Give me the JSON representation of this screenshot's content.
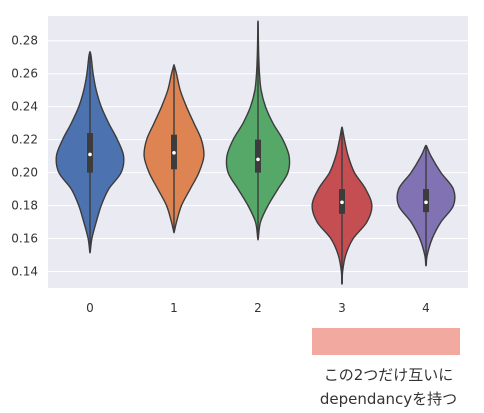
{
  "chart_data": {
    "type": "violin",
    "categories": [
      "0",
      "1",
      "2",
      "3",
      "4"
    ],
    "ylim": [
      0.13,
      0.295
    ],
    "yticks": [
      "0.14",
      "0.16",
      "0.18",
      "0.20",
      "0.22",
      "0.24",
      "0.26",
      "0.28"
    ],
    "grid": true,
    "series": [
      {
        "color": "#4c72b0",
        "min": 0.152,
        "q1": 0.2,
        "median": 0.211,
        "q3": 0.224,
        "max": 0.273,
        "density": [
          [
            0.152,
            0.2
          ],
          [
            0.16,
            1.5
          ],
          [
            0.17,
            5
          ],
          [
            0.18,
            9
          ],
          [
            0.19,
            15
          ],
          [
            0.2,
            25
          ],
          [
            0.21,
            27
          ],
          [
            0.22,
            22
          ],
          [
            0.23,
            15
          ],
          [
            0.24,
            9
          ],
          [
            0.25,
            5
          ],
          [
            0.26,
            2.5
          ],
          [
            0.27,
            1
          ],
          [
            0.273,
            0.2
          ]
        ]
      },
      {
        "color": "#dd8452",
        "min": 0.164,
        "q1": 0.202,
        "median": 0.212,
        "q3": 0.223,
        "max": 0.265,
        "density": [
          [
            0.164,
            0.2
          ],
          [
            0.17,
            2
          ],
          [
            0.18,
            6
          ],
          [
            0.19,
            13
          ],
          [
            0.2,
            20
          ],
          [
            0.21,
            24
          ],
          [
            0.22,
            22
          ],
          [
            0.23,
            16
          ],
          [
            0.24,
            10
          ],
          [
            0.25,
            5
          ],
          [
            0.26,
            2
          ],
          [
            0.265,
            0.2
          ]
        ]
      },
      {
        "color": "#55a868",
        "min": 0.16,
        "q1": 0.2,
        "median": 0.208,
        "q3": 0.22,
        "max": 0.291,
        "density": [
          [
            0.16,
            0.2
          ],
          [
            0.17,
            2
          ],
          [
            0.18,
            8
          ],
          [
            0.19,
            16
          ],
          [
            0.2,
            24
          ],
          [
            0.21,
            25
          ],
          [
            0.22,
            20
          ],
          [
            0.23,
            12
          ],
          [
            0.24,
            6
          ],
          [
            0.25,
            2.5
          ],
          [
            0.26,
            1.2
          ],
          [
            0.27,
            0.6
          ],
          [
            0.28,
            0.3
          ],
          [
            0.291,
            0.1
          ]
        ]
      },
      {
        "color": "#c44e52",
        "min": 0.133,
        "q1": 0.175,
        "median": 0.182,
        "q3": 0.19,
        "max": 0.227,
        "density": [
          [
            0.133,
            0.2
          ],
          [
            0.14,
            0.5
          ],
          [
            0.15,
            3
          ],
          [
            0.16,
            9
          ],
          [
            0.17,
            20
          ],
          [
            0.18,
            24
          ],
          [
            0.19,
            19
          ],
          [
            0.2,
            10
          ],
          [
            0.21,
            5
          ],
          [
            0.22,
            2
          ],
          [
            0.227,
            0.3
          ]
        ]
      },
      {
        "color": "#8172b3",
        "min": 0.144,
        "q1": 0.176,
        "median": 0.182,
        "q3": 0.19,
        "max": 0.216,
        "density": [
          [
            0.144,
            0.2
          ],
          [
            0.15,
            1
          ],
          [
            0.16,
            5
          ],
          [
            0.17,
            12
          ],
          [
            0.18,
            22
          ],
          [
            0.19,
            22
          ],
          [
            0.2,
            12
          ],
          [
            0.21,
            4
          ],
          [
            0.216,
            0.5
          ]
        ]
      }
    ]
  },
  "annotation": {
    "highlight_color": "#f2aaa0",
    "line1": "この2つだけ互いに",
    "line2": "dependancyを持つ"
  }
}
